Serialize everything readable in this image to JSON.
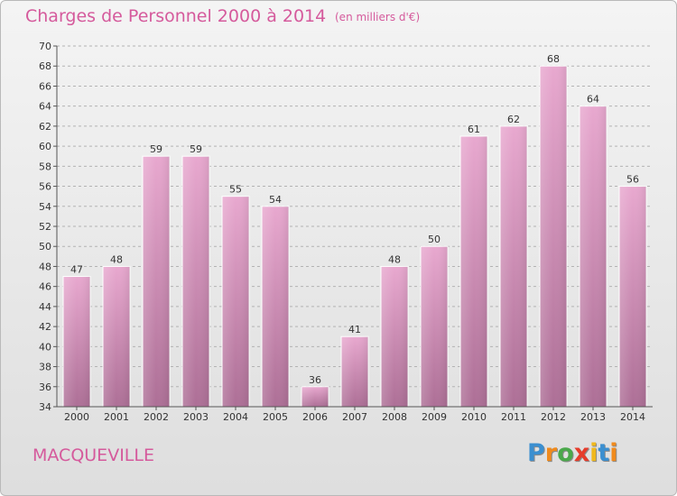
{
  "header": {
    "title": "Charges de Personnel 2000 à 2014",
    "subtitle": "(en milliers d'€)"
  },
  "footer": {
    "commune": "MACQUEVILLE",
    "logo_letters": [
      {
        "ch": "P",
        "color": "#3b8fd0"
      },
      {
        "ch": "r",
        "color": "#f08a1c"
      },
      {
        "ch": "o",
        "color": "#4aa84b"
      },
      {
        "ch": "x",
        "color": "#e63c2b"
      },
      {
        "ch": "i",
        "color": "#f0b81c"
      },
      {
        "ch": "t",
        "color": "#3b8fd0"
      },
      {
        "ch": "i",
        "color": "#f08a1c"
      }
    ]
  },
  "colors": {
    "accent": "#d55a9c",
    "bar_top": "#e8a8cf",
    "bar_bottom": "#ad6f96",
    "grid": "#b3b3b3"
  },
  "chart_data": {
    "type": "bar",
    "categories": [
      "2000",
      "2001",
      "2002",
      "2003",
      "2004",
      "2005",
      "2006",
      "2007",
      "2008",
      "2009",
      "2010",
      "2011",
      "2012",
      "2013",
      "2014"
    ],
    "values": [
      47,
      48,
      59,
      59,
      55,
      54,
      36,
      41,
      48,
      50,
      61,
      62,
      68,
      64,
      56
    ],
    "ylim": [
      34,
      70
    ],
    "yticks": [
      34,
      36,
      38,
      40,
      42,
      44,
      46,
      48,
      50,
      52,
      54,
      56,
      58,
      60,
      62,
      64,
      66,
      68,
      70
    ],
    "grid": true,
    "grid_style": "dashed"
  }
}
